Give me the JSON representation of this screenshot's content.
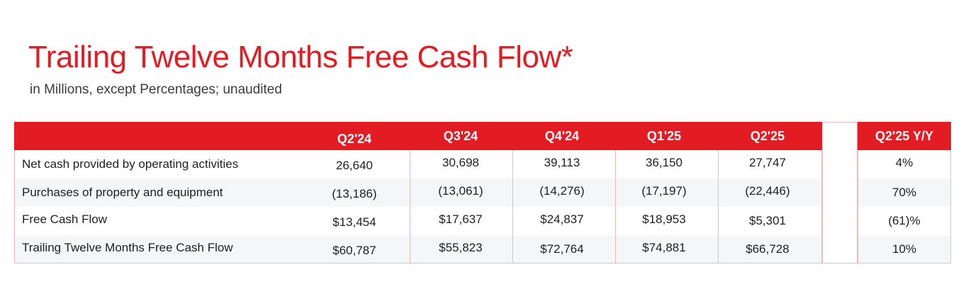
{
  "title": "Trailing Twelve Months Free Cash Flow*",
  "subtitle": "in Millions, except Percentages; unaudited",
  "table": {
    "columns": [
      "Q2'24",
      "Q3'24",
      "Q4'24",
      "Q1'25",
      "Q2'25"
    ],
    "yy_header": "Q2'25 Y/Y",
    "rows": [
      {
        "label": "Net cash provided by operating activities",
        "values": [
          "26,640",
          "30,698",
          "39,113",
          "36,150",
          "27,747"
        ],
        "yy": "4%"
      },
      {
        "label": "Purchases of property and equipment",
        "values": [
          "(13,186)",
          "(13,061)",
          "(14,276)",
          "(17,197)",
          "(22,446)"
        ],
        "yy": "70%"
      },
      {
        "label": "Free Cash Flow",
        "values": [
          "$13,454",
          "$17,637",
          "$24,837",
          "$18,953",
          "$5,301"
        ],
        "yy": "(61)%"
      },
      {
        "label": "Trailing Twelve Months Free Cash Flow",
        "values": [
          "$60,787",
          "$55,823",
          "$72,764",
          "$74,881",
          "$66,728"
        ],
        "yy": "10%"
      }
    ]
  },
  "colors": {
    "accent": "#e31b23",
    "border": "#f2b8ba",
    "row_shade": "#f5f6f8"
  }
}
